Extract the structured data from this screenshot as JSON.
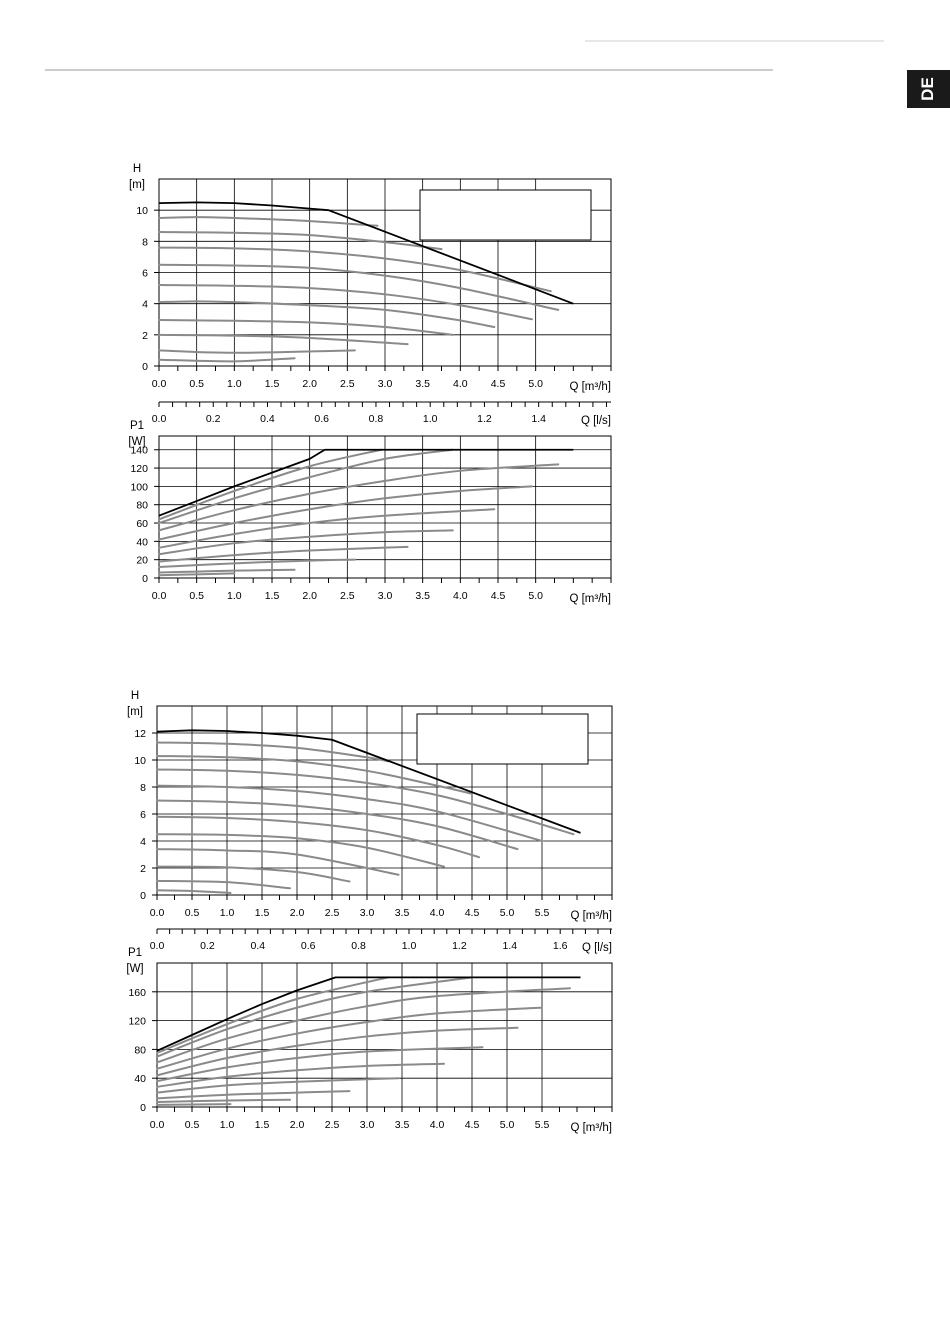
{
  "language_tab": "DE",
  "colors": {
    "curve": "#8a8a8a",
    "envelope": "#000000",
    "tab": "#1a1a1a"
  },
  "chart_data": [
    {
      "type": "line",
      "title": "",
      "xlabel": "Q [m³/h]",
      "ylabel_line1": "H",
      "ylabel_line2": "[m]",
      "x_ticks": [
        "0.0",
        "0.5",
        "1.0",
        "1.5",
        "2.0",
        "2.5",
        "3.0",
        "3.5",
        "4.0",
        "4.5",
        "5.0"
      ],
      "y_ticks": [
        "0",
        "2",
        "4",
        "6",
        "8",
        "10"
      ],
      "xlim": [
        0,
        6.0
      ],
      "ylim": [
        0,
        12.0
      ],
      "secondary_axis": {
        "label": "Q [l/s]",
        "ticks": [
          "0.0",
          "0.2",
          "0.4",
          "0.6",
          "0.8",
          "1.0",
          "1.2",
          "1.4"
        ]
      },
      "envelope": {
        "x": [
          0,
          0.5,
          1.0,
          1.5,
          2.0,
          2.25,
          5.5
        ],
        "y": [
          10.45,
          10.5,
          10.45,
          10.3,
          10.1,
          10.0,
          4.0
        ]
      },
      "series": [
        {
          "x": [
            0,
            1.0,
            1.8
          ],
          "y": [
            0.4,
            0.3,
            0.5
          ]
        },
        {
          "x": [
            0,
            1.0,
            2.6
          ],
          "y": [
            1.0,
            0.85,
            1.0
          ]
        },
        {
          "x": [
            0,
            1.0,
            2.0,
            3.3
          ],
          "y": [
            2.0,
            1.95,
            1.8,
            1.4
          ]
        },
        {
          "x": [
            0,
            1.0,
            2.0,
            3.0,
            3.9
          ],
          "y": [
            2.95,
            2.9,
            2.8,
            2.5,
            2.0
          ]
        },
        {
          "x": [
            0,
            0.5,
            1.0,
            2.0,
            3.0,
            3.9,
            4.45
          ],
          "y": [
            4.1,
            4.15,
            4.1,
            3.9,
            3.6,
            3.0,
            2.5
          ]
        },
        {
          "x": [
            0,
            1.0,
            2.0,
            3.0,
            4.0,
            4.95
          ],
          "y": [
            5.2,
            5.15,
            5.0,
            4.6,
            3.9,
            3.0
          ]
        },
        {
          "x": [
            0,
            1.0,
            2.0,
            3.0,
            4.0,
            5.3
          ],
          "y": [
            6.5,
            6.45,
            6.3,
            5.8,
            5.0,
            3.6
          ]
        },
        {
          "x": [
            0,
            1.0,
            2.0,
            3.0,
            4.0,
            5.2
          ],
          "y": [
            7.6,
            7.55,
            7.35,
            6.9,
            6.15,
            4.8
          ]
        },
        {
          "x": [
            0,
            1.0,
            2.0,
            3.0,
            3.75
          ],
          "y": [
            8.6,
            8.55,
            8.4,
            7.95,
            7.5
          ]
        },
        {
          "x": [
            0,
            0.5,
            1.0,
            2.0,
            2.9
          ],
          "y": [
            9.5,
            9.55,
            9.5,
            9.3,
            9.0
          ]
        }
      ]
    },
    {
      "type": "line",
      "title": "",
      "xlabel": "Q [m³/h]",
      "ylabel_line1": "P1",
      "ylabel_line2": "[W]",
      "x_ticks": [
        "0.0",
        "0.5",
        "1.0",
        "1.5",
        "2.0",
        "2.5",
        "3.0",
        "3.5",
        "4.0",
        "4.5",
        "5.0"
      ],
      "y_ticks": [
        "0",
        "20",
        "40",
        "60",
        "80",
        "100",
        "120",
        "140"
      ],
      "xlim": [
        0,
        6.0
      ],
      "ylim": [
        0,
        155
      ],
      "envelope": {
        "x": [
          0,
          0.5,
          1.0,
          1.5,
          2.0,
          2.2,
          5.5
        ],
        "y": [
          68,
          84,
          100,
          115,
          130,
          140,
          140
        ]
      },
      "series": [
        {
          "x": [
            0,
            0.5,
            1.0
          ],
          "y": [
            3,
            4,
            5
          ]
        },
        {
          "x": [
            0,
            0.5,
            1.0,
            1.8
          ],
          "y": [
            6,
            7,
            8,
            9
          ]
        },
        {
          "x": [
            0,
            1.0,
            2.0,
            2.6
          ],
          "y": [
            12,
            16,
            19,
            20
          ]
        },
        {
          "x": [
            0,
            1.0,
            2.0,
            3.3
          ],
          "y": [
            18,
            25,
            30,
            34
          ]
        },
        {
          "x": [
            0,
            1.0,
            2.0,
            3.0,
            3.9
          ],
          "y": [
            26,
            38,
            45,
            50,
            52
          ]
        },
        {
          "x": [
            0,
            1.0,
            2.0,
            3.0,
            4.45
          ],
          "y": [
            33,
            48,
            60,
            68,
            75
          ]
        },
        {
          "x": [
            0,
            1.0,
            2.0,
            3.0,
            4.0,
            4.95
          ],
          "y": [
            42,
            60,
            75,
            87,
            95,
            100
          ]
        },
        {
          "x": [
            0,
            1.0,
            2.0,
            3.0,
            4.0,
            5.3
          ],
          "y": [
            52,
            74,
            92,
            106,
            117,
            124
          ]
        },
        {
          "x": [
            0,
            1.0,
            2.0,
            3.0,
            3.9
          ],
          "y": [
            60,
            87,
            110,
            130,
            140
          ]
        },
        {
          "x": [
            0,
            1.0,
            2.0,
            2.95
          ],
          "y": [
            64,
            95,
            122,
            140
          ]
        }
      ]
    },
    {
      "type": "line",
      "title": "",
      "xlabel": "Q [m³/h]",
      "ylabel_line1": "H",
      "ylabel_line2": "[m]",
      "x_ticks": [
        "0.0",
        "0.5",
        "1.0",
        "1.5",
        "2.0",
        "2.5",
        "3.0",
        "3.5",
        "4.0",
        "4.5",
        "5.0",
        "5.5"
      ],
      "y_ticks": [
        "0",
        "2",
        "4",
        "6",
        "8",
        "10",
        "12"
      ],
      "xlim": [
        0,
        6.5
      ],
      "ylim": [
        0,
        14.0
      ],
      "secondary_axis": {
        "label": "Q [l/s]",
        "ticks": [
          "0.0",
          "0.2",
          "0.4",
          "0.6",
          "0.8",
          "1.0",
          "1.2",
          "1.4",
          "1.6"
        ]
      },
      "envelope": {
        "x": [
          0,
          0.5,
          1.0,
          1.5,
          2.0,
          2.5,
          6.05
        ],
        "y": [
          12.1,
          12.2,
          12.15,
          12.0,
          11.8,
          11.5,
          4.6
        ]
      },
      "series": [
        {
          "x": [
            0,
            0.5,
            1.05
          ],
          "y": [
            0.35,
            0.3,
            0.15
          ]
        },
        {
          "x": [
            0,
            1.0,
            1.9
          ],
          "y": [
            1.05,
            0.95,
            0.5
          ]
        },
        {
          "x": [
            0,
            1.0,
            2.0,
            2.75
          ],
          "y": [
            2.1,
            2.05,
            1.7,
            1.0
          ]
        },
        {
          "x": [
            0,
            1.0,
            2.0,
            3.45
          ],
          "y": [
            3.4,
            3.3,
            3.0,
            1.5
          ]
        },
        {
          "x": [
            0,
            1.0,
            2.0,
            3.0,
            4.1
          ],
          "y": [
            4.5,
            4.45,
            4.2,
            3.5,
            2.1
          ]
        },
        {
          "x": [
            0,
            1.0,
            2.0,
            3.0,
            4.0,
            4.6
          ],
          "y": [
            5.8,
            5.7,
            5.4,
            4.8,
            3.7,
            2.8
          ]
        },
        {
          "x": [
            0,
            1.0,
            2.0,
            3.0,
            4.0,
            5.15
          ],
          "y": [
            7.0,
            6.9,
            6.6,
            6.0,
            5.1,
            3.4
          ]
        },
        {
          "x": [
            0,
            1.0,
            2.0,
            3.0,
            4.0,
            5.5
          ],
          "y": [
            8.1,
            8.0,
            7.7,
            7.1,
            6.2,
            4.0
          ]
        },
        {
          "x": [
            0,
            1.0,
            2.0,
            3.0,
            4.0,
            5.0,
            5.95
          ],
          "y": [
            9.3,
            9.2,
            8.9,
            8.3,
            7.4,
            6.0,
            4.5
          ]
        },
        {
          "x": [
            0,
            1.0,
            2.0,
            3.0,
            4.0,
            4.5
          ],
          "y": [
            10.3,
            10.2,
            9.9,
            9.2,
            8.1,
            7.5
          ]
        },
        {
          "x": [
            0,
            1.0,
            2.0,
            3.0,
            3.3
          ],
          "y": [
            11.3,
            11.2,
            10.9,
            10.2,
            9.9
          ]
        }
      ]
    },
    {
      "type": "line",
      "title": "",
      "xlabel": "Q [m³/h]",
      "ylabel_line1": "P1",
      "ylabel_line2": "[W]",
      "x_ticks": [
        "0.0",
        "0.5",
        "1.0",
        "1.5",
        "2.0",
        "2.5",
        "3.0",
        "3.5",
        "4.0",
        "4.5",
        "5.0",
        "5.5"
      ],
      "y_ticks": [
        "0",
        "40",
        "80",
        "120",
        "160"
      ],
      "xlim": [
        0,
        6.5
      ],
      "ylim": [
        0,
        200
      ],
      "envelope": {
        "x": [
          0,
          0.5,
          1.0,
          1.5,
          2.0,
          2.55,
          6.05
        ],
        "y": [
          78,
          100,
          122,
          143,
          162,
          180,
          180
        ]
      },
      "series": [
        {
          "x": [
            0,
            1.05
          ],
          "y": [
            3,
            4
          ]
        },
        {
          "x": [
            0,
            1.0,
            1.9
          ],
          "y": [
            7,
            9,
            10
          ]
        },
        {
          "x": [
            0,
            1.0,
            2.0,
            2.75
          ],
          "y": [
            12,
            17,
            20,
            22
          ]
        },
        {
          "x": [
            0,
            1.0,
            2.0,
            3.45
          ],
          "y": [
            20,
            30,
            35,
            40
          ]
        },
        {
          "x": [
            0,
            1.0,
            2.0,
            3.0,
            4.1
          ],
          "y": [
            28,
            42,
            51,
            57,
            60
          ]
        },
        {
          "x": [
            0,
            1.0,
            2.0,
            3.0,
            4.65
          ],
          "y": [
            36,
            55,
            68,
            77,
            83
          ]
        },
        {
          "x": [
            0,
            1.0,
            2.0,
            3.0,
            4.0,
            5.15
          ],
          "y": [
            44,
            68,
            85,
            98,
            106,
            110
          ]
        },
        {
          "x": [
            0,
            1.0,
            2.0,
            3.0,
            4.0,
            5.5
          ],
          "y": [
            53,
            81,
            102,
            118,
            130,
            138
          ]
        },
        {
          "x": [
            0,
            1.0,
            2.0,
            3.0,
            4.0,
            5.9
          ],
          "y": [
            62,
            95,
            120,
            140,
            154,
            165
          ]
        },
        {
          "x": [
            0,
            1.0,
            2.0,
            3.0,
            4.5
          ],
          "y": [
            70,
            108,
            138,
            160,
            180
          ]
        },
        {
          "x": [
            0,
            1.0,
            2.0,
            3.3
          ],
          "y": [
            75,
            115,
            150,
            180
          ]
        }
      ]
    }
  ]
}
